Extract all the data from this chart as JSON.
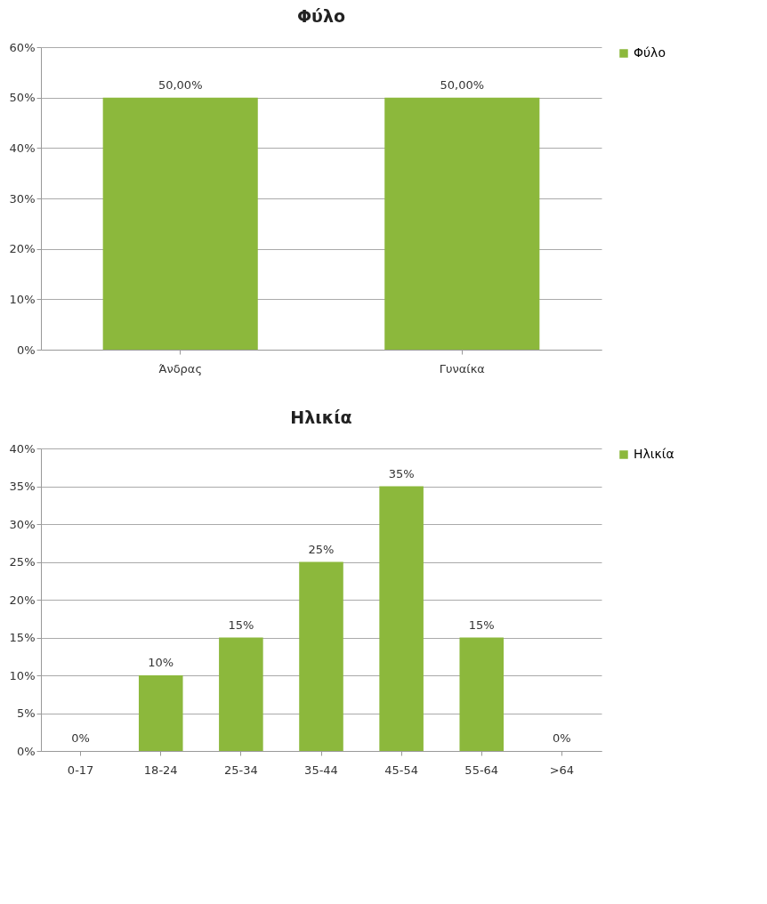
{
  "chart_data": [
    {
      "type": "bar",
      "title": "Φύλο",
      "categories": [
        "Άνδρας",
        "Γυναίκα"
      ],
      "series": [
        {
          "name": "Φύλο",
          "color": "#8cb83c",
          "values": [
            50,
            50
          ],
          "value_labels": [
            "50,00%",
            "50,00%"
          ]
        }
      ],
      "ylim": [
        0,
        60
      ],
      "yticks": [
        {
          "value": 0,
          "label": "0%"
        },
        {
          "value": 10,
          "label": "10%"
        },
        {
          "value": 20,
          "label": "20%"
        },
        {
          "value": 30,
          "label": "30%"
        },
        {
          "value": 40,
          "label": "40%"
        },
        {
          "value": 50,
          "label": "50%"
        },
        {
          "value": 60,
          "label": "60%"
        }
      ],
      "grid": "y",
      "legend": "right"
    },
    {
      "type": "bar",
      "title": "Ηλικία",
      "categories": [
        "0-17",
        "18-24",
        "25-34",
        "35-44",
        "45-54",
        "55-64",
        ">64"
      ],
      "series": [
        {
          "name": "Ηλικία",
          "color": "#8cb83c",
          "values": [
            0,
            10,
            15,
            25,
            35,
            15,
            0
          ],
          "value_labels": [
            "0%",
            "10%",
            "15%",
            "25%",
            "35%",
            "15%",
            "0%"
          ]
        }
      ],
      "ylim": [
        0,
        40
      ],
      "yticks": [
        {
          "value": 0,
          "label": "0%"
        },
        {
          "value": 5,
          "label": "5%"
        },
        {
          "value": 10,
          "label": "10%"
        },
        {
          "value": 15,
          "label": "15%"
        },
        {
          "value": 20,
          "label": "20%"
        },
        {
          "value": 25,
          "label": "25%"
        },
        {
          "value": 30,
          "label": "30%"
        },
        {
          "value": 35,
          "label": "35%"
        },
        {
          "value": 40,
          "label": "40%"
        }
      ],
      "grid": "y",
      "legend": "right"
    }
  ]
}
